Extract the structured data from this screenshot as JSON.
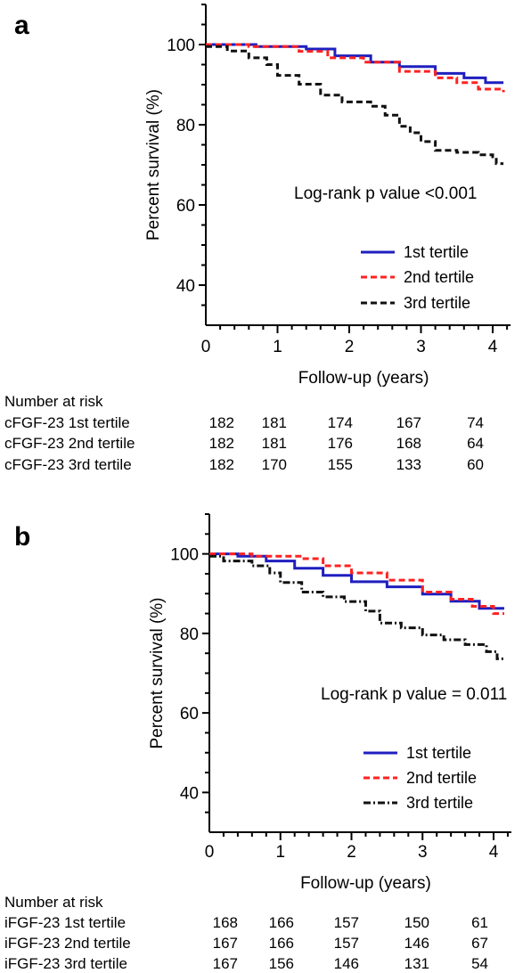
{
  "chart_data": [
    {
      "panel_label": "a",
      "type": "line",
      "ylabel": "Percent survival (%)",
      "xlabel": "Follow-up (years)",
      "xlim": [
        0,
        4.25
      ],
      "ylim": [
        30,
        110
      ],
      "xticks": [
        "0",
        "1",
        "2",
        "3",
        "4"
      ],
      "yticks": [
        "40",
        "60",
        "80",
        "100"
      ],
      "annotation": "Log-rank p value <0.001",
      "legend_position": "bottom-right",
      "series": [
        {
          "name": "1st tertile",
          "color": "#1f1fbf",
          "dash": "solid",
          "points": [
            [
              0,
              100
            ],
            [
              0.7,
              99.5
            ],
            [
              1.4,
              98.9
            ],
            [
              1.8,
              97.2
            ],
            [
              2.3,
              95.6
            ],
            [
              2.7,
              94.5
            ],
            [
              3.2,
              92.8
            ],
            [
              3.6,
              91.7
            ],
            [
              3.9,
              90.5
            ],
            [
              4.15,
              90.5
            ]
          ]
        },
        {
          "name": "2nd tertile",
          "color": "#ff2222",
          "dash": "dashed",
          "points": [
            [
              0,
              100
            ],
            [
              0.6,
              99.5
            ],
            [
              1.3,
              98.3
            ],
            [
              1.7,
              96.7
            ],
            [
              2.2,
              95.6
            ],
            [
              2.7,
              93.3
            ],
            [
              3.2,
              91.7
            ],
            [
              3.5,
              90.5
            ],
            [
              3.8,
              88.9
            ],
            [
              4.15,
              88.1
            ]
          ]
        },
        {
          "name": "3rd tertile",
          "color": "#111111",
          "dash": "dashed",
          "points": [
            [
              0,
              99.5
            ],
            [
              0.3,
              98.4
            ],
            [
              0.6,
              96.7
            ],
            [
              0.85,
              95.0
            ],
            [
              1.0,
              92.3
            ],
            [
              1.3,
              90.1
            ],
            [
              1.6,
              87.4
            ],
            [
              1.9,
              85.7
            ],
            [
              2.3,
              84.6
            ],
            [
              2.5,
              82.4
            ],
            [
              2.7,
              79.6
            ],
            [
              2.85,
              78.0
            ],
            [
              3.0,
              75.8
            ],
            [
              3.2,
              73.6
            ],
            [
              3.5,
              73.1
            ],
            [
              3.8,
              72.5
            ],
            [
              4.0,
              72.0
            ],
            [
              4.05,
              70.3
            ],
            [
              4.15,
              70.3
            ]
          ]
        }
      ]
    },
    {
      "panel_label": "b",
      "type": "line",
      "ylabel": "Percent survival (%)",
      "xlabel": "Follow-up (years)",
      "xlim": [
        0,
        4.25
      ],
      "ylim": [
        30,
        110
      ],
      "xticks": [
        "0",
        "1",
        "2",
        "3",
        "4"
      ],
      "yticks": [
        "40",
        "60",
        "80",
        "100"
      ],
      "annotation": "Log-rank p value = 0.011",
      "legend_position": "bottom-right",
      "series": [
        {
          "name": "1st tertile",
          "color": "#1f1fbf",
          "dash": "solid",
          "points": [
            [
              0,
              100
            ],
            [
              0.4,
              99.4
            ],
            [
              0.8,
              98.2
            ],
            [
              1.2,
              96.4
            ],
            [
              1.6,
              94.6
            ],
            [
              2.0,
              93.0
            ],
            [
              2.5,
              91.7
            ],
            [
              3.0,
              89.9
            ],
            [
              3.4,
              88.1
            ],
            [
              3.8,
              86.3
            ],
            [
              4.15,
              86.3
            ]
          ]
        },
        {
          "name": "2nd tertile",
          "color": "#ff2222",
          "dash": "dashed",
          "points": [
            [
              0,
              100
            ],
            [
              0.6,
              99.4
            ],
            [
              1.3,
              98.8
            ],
            [
              1.6,
              97.0
            ],
            [
              2.0,
              95.2
            ],
            [
              2.5,
              93.4
            ],
            [
              3.0,
              90.4
            ],
            [
              3.4,
              88.6
            ],
            [
              3.7,
              86.8
            ],
            [
              4.0,
              85.0
            ],
            [
              4.15,
              85.0
            ]
          ]
        },
        {
          "name": "3rd tertile",
          "color": "#111111",
          "dash": "dashdot",
          "points": [
            [
              0,
              99.4
            ],
            [
              0.2,
              98.2
            ],
            [
              0.6,
              97.0
            ],
            [
              0.85,
              95.2
            ],
            [
              1.0,
              92.8
            ],
            [
              1.3,
              90.4
            ],
            [
              1.6,
              89.2
            ],
            [
              1.9,
              88.0
            ],
            [
              2.2,
              85.6
            ],
            [
              2.4,
              82.6
            ],
            [
              2.7,
              81.4
            ],
            [
              3.0,
              79.6
            ],
            [
              3.3,
              78.4
            ],
            [
              3.6,
              77.2
            ],
            [
              3.9,
              75.4
            ],
            [
              4.05,
              73.6
            ],
            [
              4.15,
              73.6
            ]
          ]
        }
      ]
    }
  ],
  "risk_tables": [
    {
      "title": "Number at risk",
      "rows": [
        {
          "label": "cFGF-23 1st tertile",
          "values": [
            "182",
            "181",
            "174",
            "167",
            "74"
          ]
        },
        {
          "label": "cFGF-23 2nd tertile",
          "values": [
            "182",
            "181",
            "176",
            "168",
            "64"
          ]
        },
        {
          "label": "cFGF-23 3rd tertile",
          "values": [
            "182",
            "170",
            "155",
            "133",
            "60"
          ]
        }
      ]
    },
    {
      "title": "Number at risk",
      "rows": [
        {
          "label": "iFGF-23 1st tertile",
          "values": [
            "168",
            "166",
            "157",
            "150",
            "61"
          ]
        },
        {
          "label": "iFGF-23 2nd tertile",
          "values": [
            "167",
            "166",
            "157",
            "146",
            "67"
          ]
        },
        {
          "label": "iFGF-23 3rd tertile",
          "values": [
            "167",
            "156",
            "146",
            "131",
            "54"
          ]
        }
      ]
    }
  ]
}
